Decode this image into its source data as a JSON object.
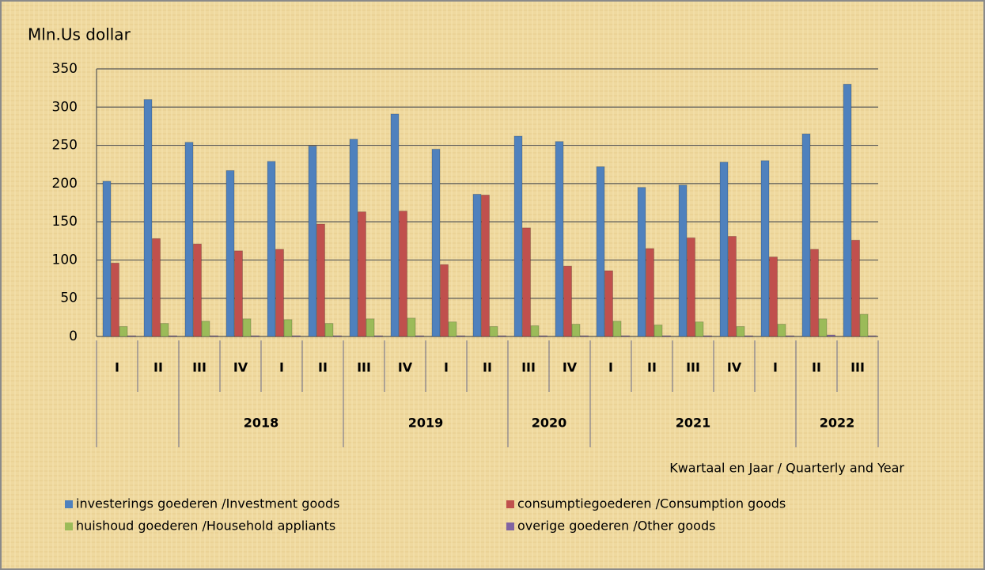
{
  "chart_data": {
    "type": "bar",
    "y_label": "Mln.Us dollar",
    "x_label": "Kwartaal en Jaar / Quarterly and Year",
    "categories": [
      "I",
      "II",
      "III",
      "IV",
      "I",
      "II",
      "III",
      "IV",
      "I",
      "II",
      "III",
      "IV",
      "I",
      "II",
      "III",
      "IV",
      "I",
      "II",
      "III"
    ],
    "years": [
      null,
      null,
      "2018",
      "2018",
      "2018",
      "2018",
      "2019",
      "2019",
      "2019",
      "2019",
      "2020",
      "2020",
      "2021",
      "2021",
      "2021",
      "2021",
      "2021",
      "2022",
      "2022"
    ],
    "series": [
      {
        "name": "investerings goederen /Investment goods",
        "color": "#4f81bd",
        "values": [
          203,
          310,
          254,
          217,
          229,
          249,
          258,
          291,
          245,
          186,
          262,
          255,
          222,
          195,
          198,
          228,
          230,
          265,
          330
        ]
      },
      {
        "name": "consumptiegoederen /Consumption goods",
        "color": "#c0504d",
        "values": [
          96,
          128,
          121,
          112,
          114,
          147,
          163,
          164,
          94,
          185,
          142,
          92,
          86,
          115,
          129,
          131,
          104,
          114,
          126
        ]
      },
      {
        "name": "huishoud goederen /Household appliants",
        "color": "#9bbb59",
        "values": [
          13,
          17,
          20,
          23,
          22,
          17,
          23,
          24,
          19,
          13,
          14,
          16,
          20,
          15,
          19,
          13,
          16,
          23,
          29
        ]
      },
      {
        "name": "overige goederen /Other goods",
        "color": "#8064a2",
        "values": [
          1,
          1,
          1,
          1,
          1,
          1,
          1,
          1,
          1,
          1,
          1,
          1,
          1,
          1,
          1,
          1,
          1,
          2,
          1
        ]
      }
    ],
    "ylim": [
      0,
      350
    ],
    "yticks": [
      0,
      50,
      100,
      150,
      200,
      250,
      300,
      350
    ],
    "grid": true
  }
}
